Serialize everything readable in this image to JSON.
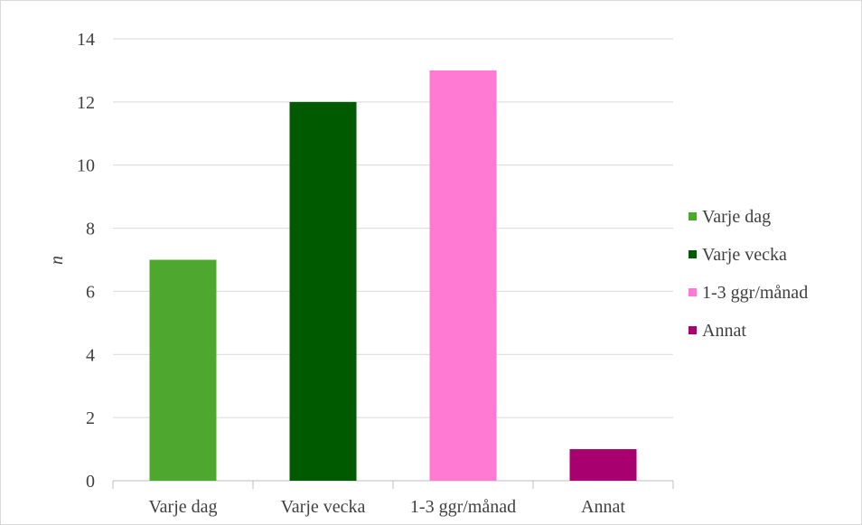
{
  "chart_data": {
    "type": "bar",
    "title": "",
    "xlabel": "",
    "ylabel": "n",
    "ylim": [
      0,
      14
    ],
    "yticks": [
      0,
      2,
      4,
      6,
      8,
      10,
      12,
      14
    ],
    "grid": true,
    "legend_position": "right",
    "categories": [
      "Varje dag",
      "Varje vecka",
      "1-3 ggr/månad",
      "Annat"
    ],
    "values": [
      7,
      12,
      13,
      1
    ],
    "colors": [
      "#4ea72e",
      "#005a00",
      "#ff7ad2",
      "#a8006e"
    ],
    "legend": [
      "Varje dag",
      "Varje vecka",
      "1-3 ggr/månad",
      "Annat"
    ]
  }
}
